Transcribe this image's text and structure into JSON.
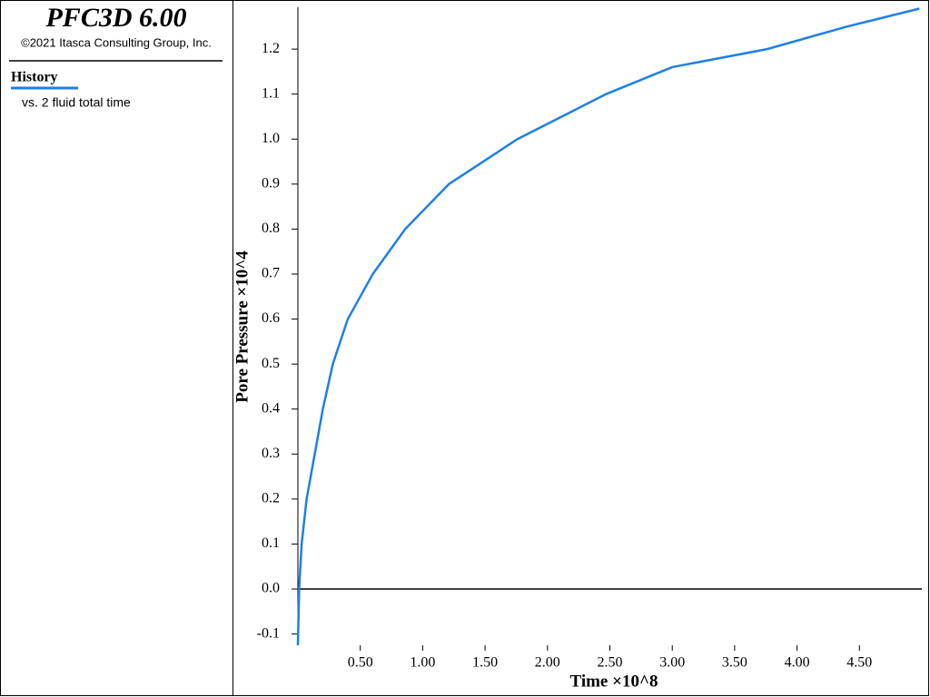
{
  "panel": {
    "title": "PFC3D 6.00",
    "copyright": "©2021 Itasca Consulting Group, Inc.",
    "legend_note": "vs. 2 fluid total time"
  },
  "chart_data": {
    "type": "line",
    "xlabel": "Time ×10^8",
    "ylabel": "Pore Pressure ×10^4",
    "x": [
      0,
      0.01,
      0.03,
      0.07,
      0.135,
      0.2,
      0.28,
      0.4,
      0.6,
      0.86,
      1.21,
      1.76,
      2.47,
      3.0,
      3.76,
      4.4,
      4.98
    ],
    "series": [
      {
        "name": "History",
        "color": "#1e7fe6",
        "values": [
          -0.125,
          0,
          0.1,
          0.2,
          0.3,
          0.4,
          0.5,
          0.6,
          0.7,
          0.8,
          0.9,
          1.0,
          1.1,
          1.16,
          1.2,
          1.25,
          1.29
        ]
      }
    ],
    "xlim": [
      0,
      5.0
    ],
    "ylim": [
      -0.125,
      1.293
    ],
    "xticks": [
      {
        "value": 0.5,
        "label": "0.50"
      },
      {
        "value": 1,
        "label": "1.00"
      },
      {
        "value": 1.5,
        "label": "1.50"
      },
      {
        "value": 2,
        "label": "2.00"
      },
      {
        "value": 2.5,
        "label": "2.50"
      },
      {
        "value": 3,
        "label": "3.00"
      },
      {
        "value": 3.5,
        "label": "3.50"
      },
      {
        "value": 4,
        "label": "4.00"
      },
      {
        "value": 4.5,
        "label": "4.50"
      }
    ],
    "yticks": [
      -0.1,
      {
        "value": 0,
        "label": "0.0"
      },
      0.1,
      0.2,
      0.3,
      0.4,
      0.5,
      0.6,
      0.7,
      0.8,
      0.9,
      {
        "value": 1,
        "label": "1.0"
      },
      1.1,
      1.2
    ]
  }
}
